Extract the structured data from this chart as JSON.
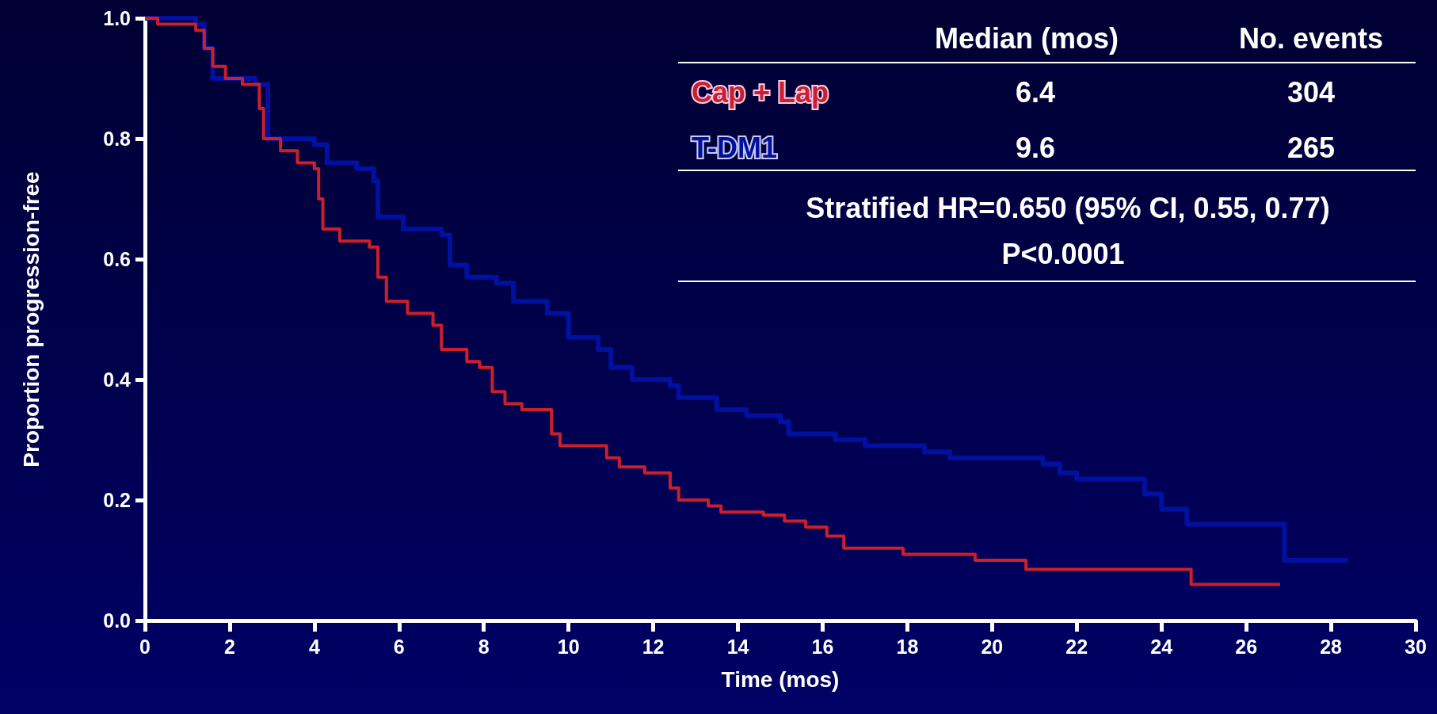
{
  "chart_data": {
    "type": "step",
    "xlabel": "Time (mos)",
    "ylabel": "Proportion progression-free",
    "xlim": [
      0,
      30
    ],
    "xticks": [
      0,
      2,
      4,
      6,
      8,
      10,
      12,
      14,
      16,
      18,
      20,
      22,
      24,
      26,
      28,
      30
    ],
    "ylim": [
      0,
      1
    ],
    "yticks": [
      {
        "value": 0,
        "label": "0.0"
      },
      0.2,
      0.4,
      0.6,
      0.8,
      {
        "value": 1,
        "label": "1.0"
      }
    ],
    "grid": false,
    "legend": false,
    "marker": "none",
    "line_style": "solid",
    "series": [
      {
        "name": "Cap + Lap",
        "color": "#cc1f2a",
        "x": [
          0,
          0.3,
          1.2,
          1.4,
          1.6,
          1.9,
          2.3,
          2.7,
          2.8,
          3.2,
          3.6,
          4.0,
          4.1,
          4.2,
          4.6,
          5.3,
          5.5,
          5.7,
          6.2,
          6.8,
          7.0,
          7.6,
          7.9,
          8.2,
          8.5,
          8.9,
          9.6,
          9.8,
          10.9,
          11.2,
          11.8,
          12.4,
          12.6,
          13.3,
          13.6,
          14.6,
          15.1,
          15.6,
          16.1,
          16.5,
          17.9,
          19.6,
          20.8,
          24.7,
          26.8
        ],
        "values": [
          1.0,
          0.99,
          0.98,
          0.95,
          0.92,
          0.9,
          0.89,
          0.85,
          0.8,
          0.78,
          0.76,
          0.75,
          0.7,
          0.65,
          0.63,
          0.62,
          0.57,
          0.53,
          0.51,
          0.49,
          0.45,
          0.43,
          0.42,
          0.38,
          0.36,
          0.35,
          0.31,
          0.29,
          0.27,
          0.255,
          0.245,
          0.22,
          0.2,
          0.19,
          0.18,
          0.175,
          0.165,
          0.155,
          0.14,
          0.12,
          0.11,
          0.1,
          0.085,
          0.06,
          0.06
        ]
      },
      {
        "name": "T-DM1",
        "color": "#0010a0",
        "x": [
          0,
          1.2,
          1.4,
          1.6,
          2.6,
          2.9,
          3.5,
          4.0,
          4.3,
          5.0,
          5.4,
          5.5,
          6.1,
          7.0,
          7.2,
          7.6,
          8.3,
          8.7,
          9.5,
          10.0,
          10.7,
          11.0,
          11.5,
          12.4,
          12.6,
          13.5,
          14.2,
          15.0,
          15.2,
          16.3,
          17.0,
          18.4,
          19.0,
          21.2,
          21.6,
          22.0,
          23.6,
          24.0,
          24.6,
          26.9,
          28.4
        ],
        "values": [
          1.0,
          0.99,
          0.95,
          0.9,
          0.89,
          0.8,
          0.8,
          0.79,
          0.76,
          0.75,
          0.73,
          0.67,
          0.65,
          0.64,
          0.59,
          0.57,
          0.56,
          0.53,
          0.51,
          0.47,
          0.45,
          0.42,
          0.4,
          0.39,
          0.37,
          0.35,
          0.34,
          0.33,
          0.31,
          0.3,
          0.29,
          0.28,
          0.27,
          0.26,
          0.245,
          0.235,
          0.21,
          0.185,
          0.16,
          0.1,
          0.1
        ]
      }
    ],
    "annotations": [
      "Median (mos)",
      "No. events",
      "6.4",
      "304",
      "9.6",
      "265",
      "Stratified HR=0.650 (95% CI, 0.55, 0.77)",
      "P<0.0001"
    ]
  }
}
